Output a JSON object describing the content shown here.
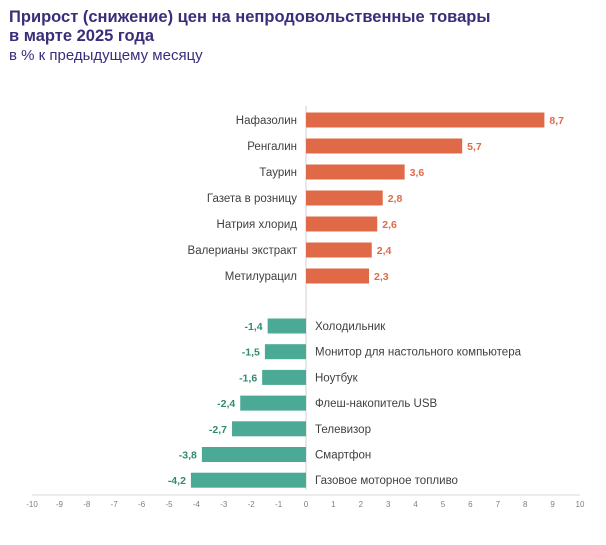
{
  "title_line1": "Прирост (снижение) цен на непродовольственные товары",
  "title_line2": "в марте 2025 года",
  "subtitle": "в % к предыдущему месяцу",
  "colors": {
    "positive": "#e06a47",
    "negative": "#4aaa95",
    "positive_label": "#e06a47",
    "negative_label": "#2e8b74",
    "title": "#3a2e7a"
  },
  "chart_data": {
    "type": "bar",
    "orientation": "horizontal",
    "title": "Прирост (снижение) цен на непродовольственные товары в марте 2025 года",
    "subtitle": "в % к предыдущему месяцу",
    "xlim": [
      -10,
      10
    ],
    "xticks": [
      -10,
      -9,
      -8,
      -7,
      -6,
      -5,
      -4,
      -3,
      -2,
      -1,
      0,
      1,
      2,
      3,
      4,
      5,
      6,
      7,
      8,
      9,
      10
    ],
    "grid": false,
    "groups": [
      {
        "categories": [
          "Нафазолин",
          "Ренгалин",
          "Таурин",
          "Газета в розницу",
          "Натрия хлорид",
          "Валерианы экстракт",
          "Метилурацил"
        ],
        "values": [
          8.7,
          5.7,
          3.6,
          2.8,
          2.6,
          2.4,
          2.3
        ],
        "labels": [
          "8,7",
          "5,7",
          "3,6",
          "2,8",
          "2,6",
          "2,4",
          "2,3"
        ]
      },
      {
        "categories": [
          "Холодильник",
          "Монитор для настольного компьютера",
          "Ноутбук",
          "Флеш-накопитель USB",
          "Телевизор",
          "Смартфон",
          "Газовое моторное топливо"
        ],
        "values": [
          -1.4,
          -1.5,
          -1.6,
          -2.4,
          -2.7,
          -3.8,
          -4.2
        ],
        "labels": [
          "-1,4",
          "-1,5",
          "-1,6",
          "-2,4",
          "-2,7",
          "-3,8",
          "-4,2"
        ]
      }
    ]
  }
}
